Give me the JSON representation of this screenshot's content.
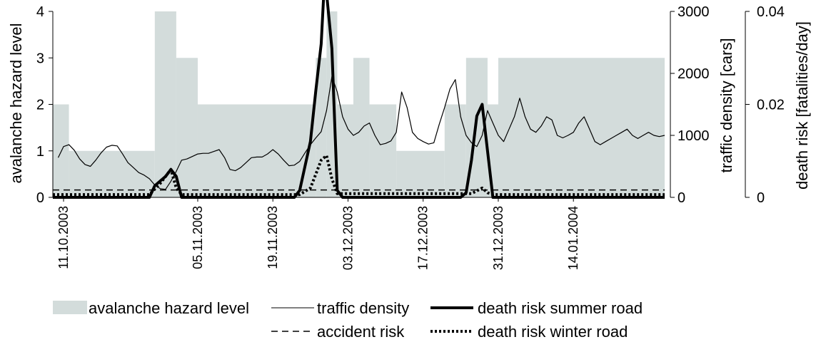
{
  "chart_data": {
    "type": "area",
    "x_type": "date",
    "x_range": [
      "2003-10-09",
      "2004-01-31"
    ],
    "x_tick_labels": [
      "11.10.2003",
      "05.11.2003",
      "19.11.2003",
      "03.12.2003",
      "17.12.2003",
      "31.12.2003",
      "14.01.2004"
    ],
    "x_tick_dates": [
      "2003-10-11",
      "2003-11-05",
      "2003-11-19",
      "2003-12-03",
      "2003-12-17",
      "2003-12-31",
      "2004-01-14"
    ],
    "axes": {
      "left": {
        "label": "avalanche hazard level",
        "range": [
          0,
          4
        ],
        "ticks": [
          "0",
          "1",
          "2",
          "3",
          "4"
        ]
      },
      "right1": {
        "label": "traffic density [cars]",
        "range": [
          0,
          3000
        ],
        "ticks": [
          "0",
          "1000",
          "2000",
          "3000"
        ]
      },
      "right2": {
        "label": "death risk [fatalities/day]",
        "range": [
          0,
          0.04
        ],
        "ticks": [
          "0",
          "0.02",
          "0.04"
        ]
      }
    },
    "grid": false,
    "legend_position": "bottom",
    "series": [
      {
        "name": "avalanche hazard level",
        "axis": "left",
        "kind": "step-area",
        "color": "#d3dcdb",
        "steps": [
          [
            "2003-10-09",
            2
          ],
          [
            "2003-10-12",
            1
          ],
          [
            "2003-10-28",
            4
          ],
          [
            "2003-11-01",
            3
          ],
          [
            "2003-11-05",
            2
          ],
          [
            "2003-11-27",
            3
          ],
          [
            "2003-11-29",
            4
          ],
          [
            "2003-12-01",
            2
          ],
          [
            "2003-12-04",
            3
          ],
          [
            "2003-12-07",
            2
          ],
          [
            "2003-12-12",
            1
          ],
          [
            "2003-12-21",
            2
          ],
          [
            "2003-12-25",
            3
          ],
          [
            "2003-12-29",
            2
          ],
          [
            "2003-12-31",
            3
          ],
          [
            "2004-01-31",
            3
          ]
        ]
      },
      {
        "name": "traffic density",
        "axis": "right1",
        "kind": "line",
        "color": "#000000",
        "points": [
          [
            "2003-10-10",
            640
          ],
          [
            "2003-10-11",
            820
          ],
          [
            "2003-10-12",
            850
          ],
          [
            "2003-10-13",
            760
          ],
          [
            "2003-10-14",
            620
          ],
          [
            "2003-10-15",
            530
          ],
          [
            "2003-10-16",
            500
          ],
          [
            "2003-10-17",
            600
          ],
          [
            "2003-10-18",
            720
          ],
          [
            "2003-10-19",
            810
          ],
          [
            "2003-10-20",
            840
          ],
          [
            "2003-10-21",
            830
          ],
          [
            "2003-10-22",
            700
          ],
          [
            "2003-10-23",
            560
          ],
          [
            "2003-10-24",
            480
          ],
          [
            "2003-10-25",
            400
          ],
          [
            "2003-10-26",
            360
          ],
          [
            "2003-10-27",
            300
          ],
          [
            "2003-10-28",
            200
          ],
          [
            "2003-10-29",
            140
          ],
          [
            "2003-10-30",
            130
          ],
          [
            "2003-10-31",
            260
          ],
          [
            "2003-11-01",
            420
          ],
          [
            "2003-11-02",
            600
          ],
          [
            "2003-11-03",
            620
          ],
          [
            "2003-11-04",
            660
          ],
          [
            "2003-11-05",
            700
          ],
          [
            "2003-11-06",
            710
          ],
          [
            "2003-11-07",
            710
          ],
          [
            "2003-11-08",
            740
          ],
          [
            "2003-11-09",
            770
          ],
          [
            "2003-11-10",
            640
          ],
          [
            "2003-11-11",
            450
          ],
          [
            "2003-11-12",
            430
          ],
          [
            "2003-11-13",
            480
          ],
          [
            "2003-11-14",
            560
          ],
          [
            "2003-11-15",
            640
          ],
          [
            "2003-11-16",
            650
          ],
          [
            "2003-11-17",
            650
          ],
          [
            "2003-11-18",
            700
          ],
          [
            "2003-11-19",
            770
          ],
          [
            "2003-11-20",
            700
          ],
          [
            "2003-11-21",
            600
          ],
          [
            "2003-11-22",
            510
          ],
          [
            "2003-11-23",
            520
          ],
          [
            "2003-11-24",
            580
          ],
          [
            "2003-11-25",
            720
          ],
          [
            "2003-11-26",
            850
          ],
          [
            "2003-11-27",
            960
          ],
          [
            "2003-11-28",
            1060
          ],
          [
            "2003-11-29",
            1400
          ],
          [
            "2003-11-30",
            1950
          ],
          [
            "2003-12-01",
            1700
          ],
          [
            "2003-12-02",
            1300
          ],
          [
            "2003-12-03",
            1100
          ],
          [
            "2003-12-04",
            1000
          ],
          [
            "2003-12-05",
            1050
          ],
          [
            "2003-12-06",
            1150
          ],
          [
            "2003-12-07",
            1200
          ],
          [
            "2003-12-08",
            1000
          ],
          [
            "2003-12-09",
            850
          ],
          [
            "2003-12-10",
            870
          ],
          [
            "2003-12-11",
            910
          ],
          [
            "2003-12-12",
            1050
          ],
          [
            "2003-12-13",
            1700
          ],
          [
            "2003-12-14",
            1450
          ],
          [
            "2003-12-15",
            1050
          ],
          [
            "2003-12-16",
            950
          ],
          [
            "2003-12-17",
            900
          ],
          [
            "2003-12-18",
            860
          ],
          [
            "2003-12-19",
            880
          ],
          [
            "2003-12-20",
            1180
          ],
          [
            "2003-12-21",
            1450
          ],
          [
            "2003-12-22",
            1750
          ],
          [
            "2003-12-23",
            1900
          ],
          [
            "2003-12-24",
            1300
          ],
          [
            "2003-12-25",
            1000
          ],
          [
            "2003-12-26",
            880
          ],
          [
            "2003-12-27",
            820
          ],
          [
            "2003-12-28",
            1000
          ],
          [
            "2003-12-29",
            1400
          ],
          [
            "2003-12-30",
            1200
          ],
          [
            "2003-12-31",
            1000
          ],
          [
            "2004-01-01",
            900
          ],
          [
            "2004-01-02",
            1100
          ],
          [
            "2004-01-03",
            1300
          ],
          [
            "2004-01-04",
            1600
          ],
          [
            "2004-01-05",
            1300
          ],
          [
            "2004-01-06",
            1100
          ],
          [
            "2004-01-07",
            1050
          ],
          [
            "2004-01-08",
            1150
          ],
          [
            "2004-01-09",
            1300
          ],
          [
            "2004-01-10",
            1250
          ],
          [
            "2004-01-11",
            1000
          ],
          [
            "2004-01-12",
            960
          ],
          [
            "2004-01-13",
            1000
          ],
          [
            "2004-01-14",
            1050
          ],
          [
            "2004-01-15",
            1200
          ],
          [
            "2004-01-16",
            1300
          ],
          [
            "2004-01-17",
            1100
          ],
          [
            "2004-01-18",
            900
          ],
          [
            "2004-01-19",
            850
          ],
          [
            "2004-01-20",
            900
          ],
          [
            "2004-01-21",
            950
          ],
          [
            "2004-01-22",
            1000
          ],
          [
            "2004-01-23",
            1050
          ],
          [
            "2004-01-24",
            1100
          ],
          [
            "2004-01-25",
            1000
          ],
          [
            "2004-01-26",
            950
          ],
          [
            "2004-01-27",
            1000
          ],
          [
            "2004-01-28",
            1050
          ],
          [
            "2004-01-29",
            1000
          ],
          [
            "2004-01-30",
            980
          ],
          [
            "2004-01-31",
            1000
          ]
        ]
      },
      {
        "name": "accident risk",
        "axis": "right2",
        "kind": "dashed-line",
        "color": "#000000",
        "points": [
          [
            "2003-10-09",
            0.0016
          ],
          [
            "2004-01-31",
            0.0016
          ]
        ]
      },
      {
        "name": "death risk summer road",
        "axis": "right2",
        "kind": "thick-line",
        "color": "#000000",
        "points": [
          [
            "2003-10-09",
            0
          ],
          [
            "2003-10-27",
            0
          ],
          [
            "2003-10-28",
            0.0025
          ],
          [
            "2003-10-30",
            0.0045
          ],
          [
            "2003-10-31",
            0.006
          ],
          [
            "2003-11-01",
            0.0045
          ],
          [
            "2003-11-02",
            0
          ],
          [
            "2003-11-23",
            0
          ],
          [
            "2003-11-24",
            0.0015
          ],
          [
            "2003-11-26",
            0.012
          ],
          [
            "2003-11-27",
            0.023
          ],
          [
            "2003-11-28",
            0.033
          ],
          [
            "2003-11-28T12:00",
            0.044
          ],
          [
            "2003-11-29",
            0.044
          ],
          [
            "2003-11-30",
            0.032
          ],
          [
            "2003-12-01",
            0.0015
          ],
          [
            "2003-12-02",
            0
          ],
          [
            "2003-12-24",
            0
          ],
          [
            "2003-12-25",
            0.001
          ],
          [
            "2003-12-26",
            0.008
          ],
          [
            "2003-12-27",
            0.0175
          ],
          [
            "2003-12-28",
            0.02
          ],
          [
            "2003-12-29",
            0.01
          ],
          [
            "2003-12-30",
            0
          ],
          [
            "2004-01-31",
            0
          ]
        ]
      },
      {
        "name": "death risk winter road",
        "axis": "right2",
        "kind": "dotted-line",
        "color": "#000000",
        "points": [
          [
            "2003-10-09",
            0.0006
          ],
          [
            "2003-10-27",
            0.0006
          ],
          [
            "2003-10-29",
            0.003
          ],
          [
            "2003-10-31",
            0.006
          ],
          [
            "2003-11-01",
            0.002
          ],
          [
            "2003-11-02",
            0.0006
          ],
          [
            "2003-11-24",
            0.0006
          ],
          [
            "2003-11-26",
            0.002
          ],
          [
            "2003-11-27",
            0.005
          ],
          [
            "2003-11-28",
            0.008
          ],
          [
            "2003-11-29",
            0.009
          ],
          [
            "2003-11-30",
            0.004
          ],
          [
            "2003-12-01",
            0.0008
          ],
          [
            "2003-12-26",
            0.0008
          ],
          [
            "2003-12-28",
            0.002
          ],
          [
            "2003-12-29",
            0.001
          ],
          [
            "2003-12-30",
            0.0006
          ],
          [
            "2004-01-31",
            0.0006
          ]
        ]
      }
    ],
    "legend": [
      {
        "label": "avalanche hazard level",
        "style": "fill"
      },
      {
        "label": "traffic density",
        "style": "thin"
      },
      {
        "label": "death risk summer road",
        "style": "thick"
      },
      {
        "label": "accident risk",
        "style": "dash"
      },
      {
        "label": "death risk winter road",
        "style": "dot"
      }
    ]
  }
}
